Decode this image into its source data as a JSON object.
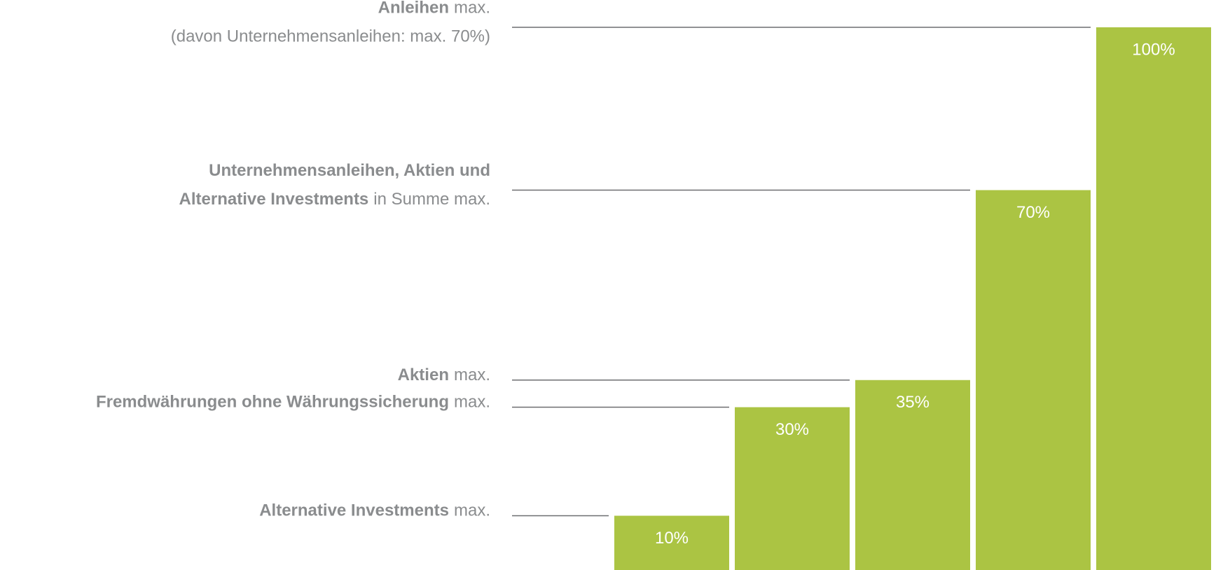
{
  "chart_data": {
    "type": "bar",
    "values": [
      10,
      30,
      35,
      70,
      100
    ],
    "value_labels": [
      "10%",
      "30%",
      "35%",
      "70%",
      "100%"
    ],
    "color": "#abc443",
    "ylim": [
      0,
      100
    ],
    "labels": [
      [
        [
          {
            "text": "Alternative Investments",
            "bold": true
          },
          {
            "text": "max.",
            "bold": false
          }
        ]
      ],
      [
        [
          {
            "text": "Fremdwährungen ohne Währungssicherung",
            "bold": true
          },
          {
            "text": "max.",
            "bold": false
          }
        ]
      ],
      [
        [
          {
            "text": "Aktien",
            "bold": true
          },
          {
            "text": "max.",
            "bold": false
          }
        ]
      ],
      [
        [
          {
            "text": "Unternehmensanleihen, Aktien und",
            "bold": true
          }
        ],
        [
          {
            "text": "Alternative Investments",
            "bold": true
          },
          {
            "text": "in Summe max.",
            "bold": false
          }
        ]
      ],
      [
        [
          {
            "text": "Anleihen",
            "bold": true
          },
          {
            "text": "max.",
            "bold": false
          }
        ],
        [
          {
            "text": "(davon Unternehmensanleihen: max. 70%)",
            "bold": false
          }
        ]
      ]
    ]
  }
}
